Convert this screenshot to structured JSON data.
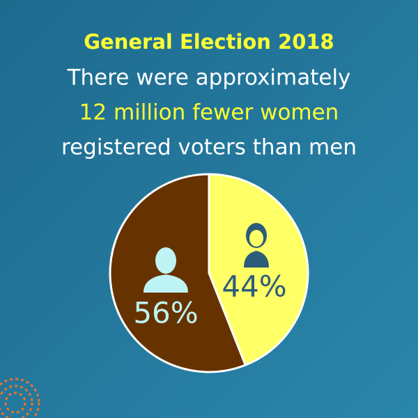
{
  "chart_data": {
    "type": "pie",
    "title": "General Election 2018",
    "subtitle": [
      "There were approximately",
      "12 million fewer women",
      "registered voters than men"
    ],
    "values": [
      44,
      56
    ],
    "value_labels": [
      "44%",
      "56%"
    ],
    "colors": [
      "#ffff66",
      "#663300"
    ]
  }
}
